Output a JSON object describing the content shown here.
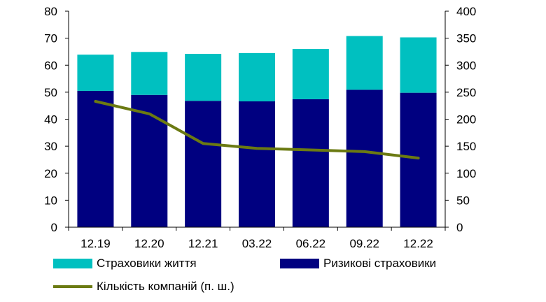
{
  "chart_data": {
    "type": "bar",
    "stacked": true,
    "categories": [
      "12.19",
      "12.20",
      "12.21",
      "03.22",
      "06.22",
      "09.22",
      "12.22"
    ],
    "series": [
      {
        "name": "Ризикові страховики",
        "axis": "left",
        "color": "#000080",
        "values": [
          50.5,
          49.0,
          46.8,
          46.6,
          47.4,
          50.9,
          49.8
        ]
      },
      {
        "name": "Страховики життя",
        "axis": "left",
        "color": "#00C0C0",
        "values": [
          13.4,
          15.9,
          17.4,
          17.9,
          18.6,
          19.9,
          20.5
        ]
      },
      {
        "name": "Кількість компаній (п. ш.)",
        "type": "line",
        "axis": "right",
        "color": "#6B7A12",
        "values": [
          233,
          210,
          155,
          146,
          143,
          140,
          128
        ]
      }
    ],
    "y_left": {
      "min": 0,
      "max": 80,
      "ticks": [
        0,
        10,
        20,
        30,
        40,
        50,
        60,
        70,
        80
      ]
    },
    "y_right": {
      "min": 0,
      "max": 400,
      "ticks": [
        0,
        50,
        100,
        150,
        200,
        250,
        300,
        350,
        400
      ]
    },
    "grid": false,
    "legend_position": "bottom"
  },
  "legend": {
    "life": "Страховики життя",
    "risk": "Ризикові страховики",
    "count": "Кількість компаній (п. ш.)"
  },
  "colors": {
    "life": "#00C0C0",
    "risk": "#000080",
    "count": "#6B7A12",
    "axis": "#000000"
  }
}
